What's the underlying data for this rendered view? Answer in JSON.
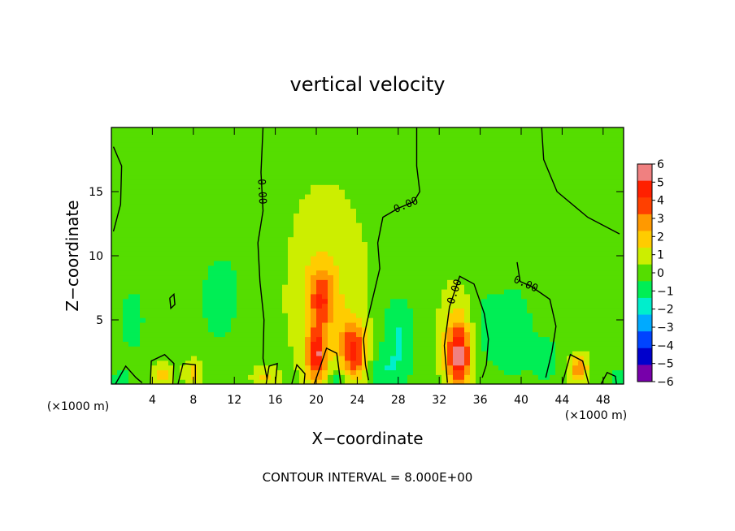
{
  "chart_data": {
    "type": "heatmap",
    "title": "vertical velocity",
    "xlabel": "X−coordinate",
    "ylabel": "Z−coordinate",
    "x_unit": "(×1000 m)",
    "xlim": [
      0,
      50
    ],
    "ylim": [
      0,
      20
    ],
    "x_ticks": [
      4,
      8,
      12,
      16,
      20,
      24,
      28,
      32,
      36,
      40,
      44,
      48
    ],
    "x_tick_labels": [
      "4",
      "8",
      "12",
      "16",
      "20",
      "24",
      "28",
      "32",
      "36",
      "40",
      "44",
      "48"
    ],
    "y_ticks": [
      5,
      10,
      15
    ],
    "y_tick_labels": [
      "5",
      "10",
      "15"
    ],
    "colorbar": {
      "min": -6,
      "max": 6,
      "tick_values": [
        6,
        5,
        4,
        3,
        2,
        1,
        0,
        -1,
        -2,
        -3,
        -4,
        -5,
        -6
      ],
      "tick_labels": [
        "6",
        "5",
        "4",
        "3",
        "2",
        "1",
        "0",
        "−1",
        "−2",
        "−3",
        "−4",
        "−5",
        "−6"
      ],
      "colors": [
        "#f08080",
        "#ff2000",
        "#ff4000",
        "#ff9900",
        "#ffcc00",
        "#ccee00",
        "#55dd00",
        "#00ee55",
        "#00eecc",
        "#00aaff",
        "#0044ff",
        "#0000cc",
        "#7700aa"
      ]
    },
    "background_value": 0.2,
    "features": [
      {
        "x": 20.5,
        "z": 6.5,
        "sx": 0.9,
        "sz": 1.6,
        "amp": 3.3
      },
      {
        "x": 20.0,
        "z": 2.3,
        "sx": 0.7,
        "sz": 1.4,
        "amp": 5.0
      },
      {
        "x": 20.8,
        "z": 8.0,
        "sx": 2.5,
        "sz": 4.5,
        "amp": 1.3
      },
      {
        "x": 23.6,
        "z": 3.3,
        "sx": 0.9,
        "sz": 1.3,
        "amp": 3.6
      },
      {
        "x": 23.8,
        "z": 1.5,
        "sx": 0.9,
        "sz": 1.0,
        "amp": 2.3
      },
      {
        "x": 33.9,
        "z": 2.2,
        "sx": 0.8,
        "sz": 1.6,
        "amp": 5.2
      },
      {
        "x": 33.9,
        "z": 4.0,
        "sx": 1.2,
        "sz": 2.5,
        "amp": 1.4
      },
      {
        "x": 45.6,
        "z": 1.2,
        "sx": 0.6,
        "sz": 0.7,
        "amp": 3.2
      },
      {
        "x": 5.0,
        "z": 0.8,
        "sx": 0.7,
        "sz": 0.6,
        "amp": 1.8
      },
      {
        "x": 8.0,
        "z": 0.9,
        "sx": 0.6,
        "sz": 0.7,
        "amp": 1.6
      },
      {
        "x": 15.0,
        "z": 0.6,
        "sx": 0.8,
        "sz": 0.5,
        "amp": 1.6
      },
      {
        "x": 28.0,
        "z": 3.8,
        "sx": 1.2,
        "sz": 2.2,
        "amp": -1.8
      },
      {
        "x": 39.5,
        "z": 4.0,
        "sx": 1.2,
        "sz": 2.5,
        "amp": -1.6
      },
      {
        "x": 10.5,
        "z": 6.5,
        "sx": 1.3,
        "sz": 2.5,
        "amp": -1.4
      },
      {
        "x": 26.5,
        "z": 1.0,
        "sx": 1.5,
        "sz": 1.0,
        "amp": -1.2
      },
      {
        "x": 36.5,
        "z": 4.5,
        "sx": 1.3,
        "sz": 3.0,
        "amp": -1.0
      },
      {
        "x": 42.5,
        "z": 2.0,
        "sx": 1.0,
        "sz": 1.5,
        "amp": -1.2
      },
      {
        "x": 2.0,
        "z": 5.0,
        "sx": 1.5,
        "sz": 3.0,
        "amp": -0.9
      },
      {
        "x": 1.0,
        "z": 0.3,
        "sx": 0.6,
        "sz": 0.4,
        "amp": -1.6
      },
      {
        "x": 22.2,
        "z": 0.5,
        "sx": 0.5,
        "sz": 0.4,
        "amp": -1.8
      },
      {
        "x": 49.5,
        "z": 0.5,
        "sx": 0.6,
        "sz": 0.5,
        "amp": -1.8
      },
      {
        "x": 14.0,
        "z": 12.0,
        "sx": 2.0,
        "sz": 4.0,
        "amp": -0.5
      }
    ],
    "contours": [
      {
        "label": "0.00",
        "points": [
          [
            29.8,
            20
          ],
          [
            29.8,
            17
          ],
          [
            30.1,
            15
          ],
          [
            29.5,
            14.2
          ],
          [
            28.0,
            13.7
          ],
          [
            26.5,
            13.0
          ],
          [
            26.0,
            11
          ],
          [
            26.2,
            9
          ],
          [
            25.6,
            7
          ],
          [
            25.0,
            5
          ],
          [
            24.6,
            3.5
          ],
          [
            24.8,
            1.5
          ],
          [
            25.1,
            0.3
          ]
        ]
      },
      {
        "label": "0.00",
        "points": [
          [
            14.8,
            20
          ],
          [
            14.6,
            16.5
          ],
          [
            14.8,
            13.5
          ],
          [
            14.3,
            11
          ],
          [
            14.5,
            8
          ],
          [
            14.9,
            5
          ],
          [
            14.8,
            2
          ],
          [
            15.2,
            0.4
          ]
        ]
      },
      {
        "label": "0.00",
        "points": [
          [
            32.8,
            0.1
          ],
          [
            32.5,
            3
          ],
          [
            33.0,
            6
          ],
          [
            34.0,
            8.4
          ],
          [
            35.4,
            7.8
          ],
          [
            36.4,
            5.5
          ],
          [
            36.8,
            3.5
          ],
          [
            36.6,
            1.5
          ],
          [
            36.2,
            0.5
          ]
        ]
      },
      {
        "label": "0.00",
        "points": [
          [
            39.6,
            9.5
          ],
          [
            39.9,
            8
          ],
          [
            41.0,
            7.6
          ],
          [
            42.8,
            6.6
          ],
          [
            43.4,
            4.5
          ],
          [
            43.0,
            2.5
          ],
          [
            42.4,
            0.5
          ]
        ]
      },
      {
        "label": "",
        "points": [
          [
            42.0,
            20
          ],
          [
            42.2,
            17.5
          ],
          [
            43.5,
            15
          ],
          [
            46.5,
            13
          ],
          [
            49.6,
            11.7
          ]
        ]
      },
      {
        "label": "",
        "points": [
          [
            0.2,
            18.5
          ],
          [
            1.0,
            17
          ],
          [
            0.9,
            14
          ],
          [
            0.2,
            11.9
          ]
        ]
      },
      {
        "label": "",
        "points": [
          [
            0.4,
            0
          ],
          [
            1.4,
            1.4
          ],
          [
            2.4,
            0.5
          ],
          [
            3.0,
            0.1
          ]
        ]
      },
      {
        "label": "",
        "points": [
          [
            3.8,
            0
          ],
          [
            3.9,
            1.8
          ],
          [
            5.2,
            2.3
          ],
          [
            6.1,
            1.6
          ],
          [
            6.0,
            0
          ]
        ]
      },
      {
        "label": "",
        "points": [
          [
            6.5,
            0
          ],
          [
            7.0,
            1.6
          ],
          [
            8.2,
            1.5
          ],
          [
            8.2,
            0
          ]
        ]
      },
      {
        "label": "",
        "points": [
          [
            15.1,
            0
          ],
          [
            15.4,
            1.4
          ],
          [
            16.2,
            1.6
          ],
          [
            16.0,
            0
          ]
        ]
      },
      {
        "label": "",
        "points": [
          [
            17.6,
            0
          ],
          [
            18.1,
            1.5
          ],
          [
            18.9,
            0.8
          ],
          [
            18.8,
            0
          ]
        ]
      },
      {
        "label": "",
        "points": [
          [
            19.8,
            0
          ],
          [
            21.0,
            2.8
          ],
          [
            22.0,
            2.4
          ],
          [
            22.4,
            0
          ]
        ]
      },
      {
        "label": "",
        "points": [
          [
            44.0,
            0
          ],
          [
            44.8,
            2.3
          ],
          [
            46.0,
            1.8
          ],
          [
            46.6,
            0
          ]
        ]
      },
      {
        "label": "",
        "points": [
          [
            47.8,
            0
          ],
          [
            48.4,
            0.9
          ],
          [
            49.2,
            0.6
          ],
          [
            49.3,
            0
          ]
        ]
      },
      {
        "label": "",
        "points": [
          [
            5.7,
            6.7
          ],
          [
            6.1,
            7.0
          ],
          [
            6.2,
            6.2
          ],
          [
            5.8,
            5.9
          ],
          [
            5.7,
            6.7
          ]
        ]
      }
    ]
  },
  "footer": {
    "contour_interval": "CONTOUR INTERVAL = 8.000E+00"
  }
}
